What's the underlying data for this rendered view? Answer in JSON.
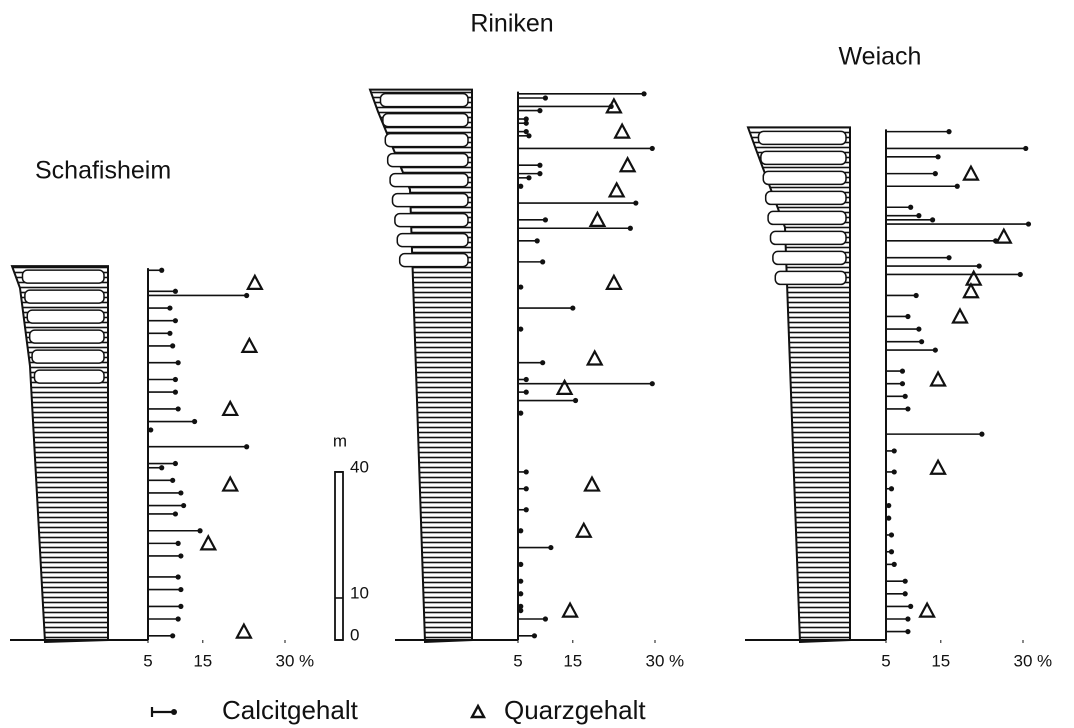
{
  "chart_data": {
    "type": "scatter",
    "xlim": [
      5,
      30
    ],
    "xticks": [
      5,
      15,
      30
    ],
    "xlabel": "%",
    "ylim": [
      0,
      134
    ],
    "scale_bar": {
      "label": "m",
      "ticks": [
        0,
        10,
        40
      ]
    },
    "series": [
      {
        "name": "Calcitgehalt",
        "marker": "pin",
        "color": "#111111"
      },
      {
        "name": "Quarzgehalt",
        "marker": "triangle",
        "color": "#111111"
      }
    ],
    "panels": [
      {
        "title": "Schafisheim",
        "series": [
          {
            "y": [
              88,
              83,
              82,
              79,
              76,
              73,
              70,
              66,
              62,
              59,
              55,
              52,
              50,
              46,
              42,
              41,
              38,
              35,
              32,
              30,
              26,
              23,
              20,
              15,
              12,
              8,
              5,
              1
            ],
            "x": [
              7.5,
              10,
              23,
              9,
              10,
              9,
              9.5,
              10.5,
              10,
              10,
              10.5,
              13.5,
              5.5,
              23,
              10,
              7.5,
              9.5,
              11,
              11.5,
              10,
              14.5,
              10.5,
              11,
              10.5,
              11,
              11,
              10.5,
              9.5
            ]
          },
          {
            "y": [
              85,
              70,
              55,
              37,
              23,
              2
            ],
            "x": [
              24.5,
              23.5,
              20,
              20,
              16,
              22.5
            ]
          }
        ]
      },
      {
        "title": "Riniken",
        "series": [
          {
            "y": [
              130,
              129,
              127,
              126,
              124,
              123,
              121,
              120,
              117,
              113,
              111,
              110,
              108,
              104,
              100,
              98,
              95,
              90,
              84,
              79,
              74,
              66,
              62,
              61,
              59,
              57,
              54,
              40,
              36,
              31,
              26,
              22,
              18,
              14,
              11,
              8,
              7,
              5,
              1
            ],
            "x": [
              28,
              10,
              22,
              9,
              6.5,
              6.5,
              6.5,
              7,
              29.5,
              9,
              9,
              7,
              5.5,
              26.5,
              10,
              25.5,
              8.5,
              9.5,
              5.5,
              15,
              5.5,
              9.5,
              6.5,
              29.5,
              6.5,
              15.5,
              5.5,
              6.5,
              6.5,
              6.5,
              5.5,
              11,
              5.5,
              5.5,
              5.5,
              5.5,
              5.5,
              10,
              8
            ]
          },
          {
            "y": [
              127,
              121,
              113,
              107,
              100,
              85,
              67,
              60,
              37,
              26,
              7
            ],
            "x": [
              22.5,
              24,
              25,
              23,
              19.5,
              22.5,
              19,
              13.5,
              18.5,
              17,
              14.5
            ]
          }
        ]
      },
      {
        "title": "Weiach",
        "series": [
          {
            "y": [
              121,
              117,
              115,
              111,
              108,
              103,
              101,
              100,
              99,
              95,
              91,
              89,
              87,
              82,
              77,
              74,
              71,
              69,
              64,
              61,
              58,
              55,
              49,
              45,
              40,
              36,
              32,
              29,
              25,
              21,
              18,
              14,
              11,
              8,
              5,
              2
            ],
            "x": [
              16.5,
              30.5,
              14.5,
              14,
              18,
              9.5,
              11,
              13.5,
              31,
              25,
              16.5,
              22,
              29.5,
              10.5,
              9,
              11,
              11.5,
              14,
              8,
              8,
              8.5,
              9,
              22.5,
              6.5,
              6.5,
              6,
              5.5,
              5.5,
              6,
              6,
              6.5,
              8.5,
              8.5,
              9.5,
              9,
              9
            ]
          },
          {
            "y": [
              111,
              96,
              86,
              83,
              77,
              62,
              41,
              7
            ],
            "x": [
              20.5,
              26.5,
              21,
              20.5,
              18.5,
              14.5,
              14.5,
              12.5
            ]
          }
        ]
      }
    ]
  }
}
